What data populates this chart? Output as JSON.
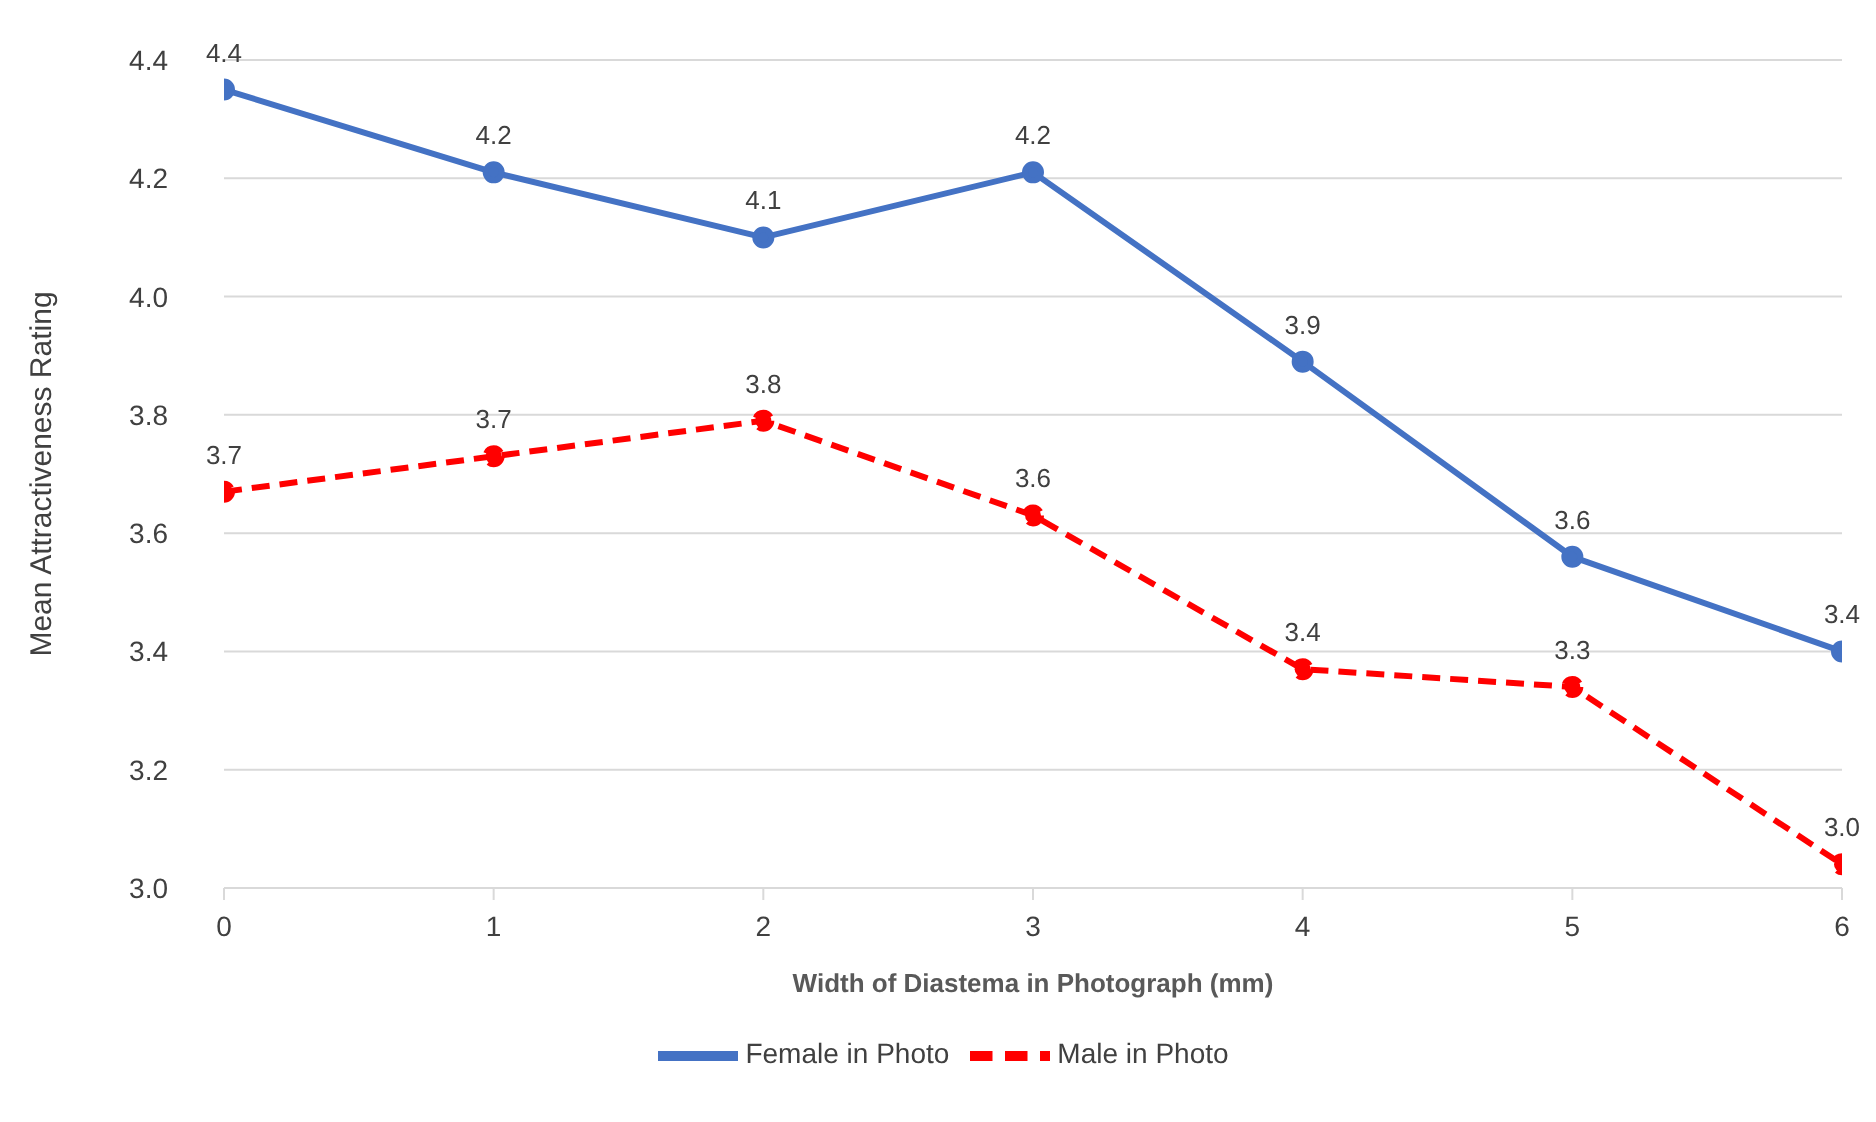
{
  "chart_data": {
    "type": "line",
    "xlabel": "Width of Diastema in Photograph (mm)",
    "ylabel": "Mean Attractiveness Rating",
    "x": [
      0,
      1,
      2,
      3,
      4,
      5,
      6
    ],
    "series": [
      {
        "name": "Female in Photo",
        "color": "#4472c4",
        "line_style": "solid",
        "values": [
          4.35,
          4.21,
          4.1,
          4.21,
          3.89,
          3.56,
          3.4
        ],
        "value_labels": [
          "4.4",
          "4.2",
          "4.1",
          "4.2",
          "3.9",
          "3.6",
          "3.4"
        ]
      },
      {
        "name": "Male in Photo",
        "color": "#ff0000",
        "line_style": "dashed",
        "values": [
          3.67,
          3.73,
          3.79,
          3.63,
          3.37,
          3.34,
          3.04
        ],
        "value_labels": [
          "3.7",
          "3.7",
          "3.8",
          "3.6",
          "3.4",
          "3.3",
          "3.0"
        ]
      }
    ],
    "xlim": [
      0,
      6
    ],
    "xticks": [
      0,
      1,
      2,
      3,
      4,
      5,
      6
    ],
    "ylim": [
      3.0,
      4.4
    ],
    "yticks": [
      {
        "value": 3.0,
        "label": "3.0"
      },
      3.2,
      3.4,
      3.6,
      3.8,
      {
        "value": 4.0,
        "label": "4.0"
      },
      4.2,
      4.4
    ],
    "grid": "y",
    "legend": "bottom",
    "marker": "circle"
  }
}
